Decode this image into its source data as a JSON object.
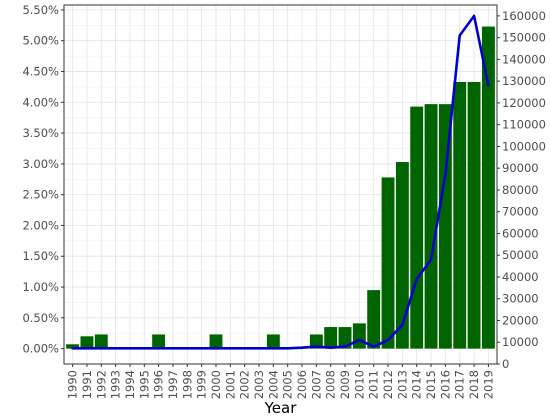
{
  "chart_data": {
    "type": "bar",
    "xlabel": "Year",
    "categories": [
      "1990",
      "1991",
      "1992",
      "1993",
      "1994",
      "1995",
      "1996",
      "1997",
      "1998",
      "1999",
      "2000",
      "2001",
      "2002",
      "2003",
      "2004",
      "2005",
      "2006",
      "2007",
      "2008",
      "2009",
      "2010",
      "2011",
      "2012",
      "2013",
      "2014",
      "2015",
      "2016",
      "2017",
      "2018",
      "2019"
    ],
    "series": [
      {
        "type": "bar",
        "axis": "left",
        "color": "#006400",
        "values": [
          0.0007,
          0.002,
          0.0023,
          0,
          0,
          0,
          0.0023,
          0,
          0,
          0,
          0.0023,
          0,
          0,
          0,
          0.0023,
          0,
          0,
          0.0023,
          0.0035,
          0.0035,
          0.0041,
          0.0095,
          0.0278,
          0.0303,
          0.0393,
          0.0397,
          0.0397,
          0.0433,
          0.0433,
          0.0523
        ]
      },
      {
        "type": "line",
        "axis": "right",
        "color": "#0000cd",
        "values": [
          7200,
          7200,
          7200,
          7200,
          7200,
          7200,
          7200,
          7200,
          7200,
          7200,
          7200,
          7200,
          7200,
          7200,
          7200,
          7200,
          7500,
          8000,
          7500,
          8000,
          11000,
          8000,
          11000,
          18000,
          39000,
          48000,
          87000,
          151000,
          160000,
          128000
        ]
      }
    ],
    "y_left": {
      "range": [
        -0.0025,
        0.0558
      ],
      "ticks": [
        0,
        0.005,
        0.01,
        0.015,
        0.02,
        0.025,
        0.03,
        0.035,
        0.04,
        0.045,
        0.05,
        0.055
      ],
      "tick_labels": [
        "0.00%",
        "0.50%",
        "1.00%",
        "1.50%",
        "2.00%",
        "2.50%",
        "3.00%",
        "3.50%",
        "4.00%",
        "4.50%",
        "5.00%",
        "5.50%"
      ]
    },
    "y_right": {
      "range": [
        0,
        165000
      ],
      "ticks": [
        0,
        10000,
        20000,
        30000,
        40000,
        50000,
        60000,
        70000,
        80000,
        90000,
        100000,
        110000,
        120000,
        130000,
        140000,
        150000,
        160000
      ],
      "tick_labels": [
        "0",
        "10000",
        "20000",
        "30000",
        "40000",
        "50000",
        "60000",
        "70000",
        "80000",
        "90000",
        "100000",
        "110000",
        "120000",
        "130000",
        "140000",
        "150000",
        "160000"
      ]
    },
    "grid": true
  }
}
